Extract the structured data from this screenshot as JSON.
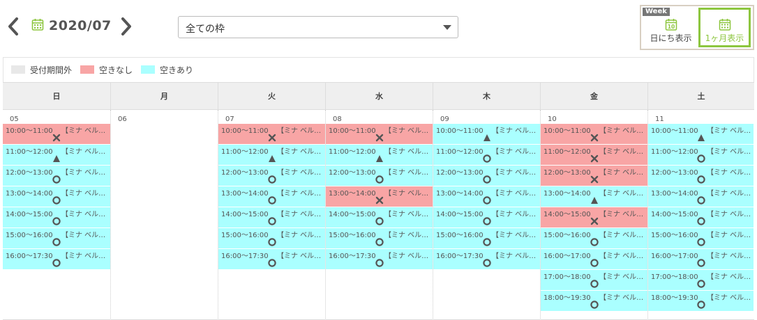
{
  "header": {
    "month": "2020/07",
    "prev_icon": "chevron-left-icon",
    "next_icon": "chevron-right-icon",
    "calendar_icon": "calendar-icon"
  },
  "filter": {
    "selected": "全ての枠"
  },
  "view_switch": {
    "week_tag": "Week",
    "day_label": "日にち表示",
    "day_icon_text": "10",
    "month_label": "1ヶ月表示",
    "active": "month"
  },
  "legend": [
    {
      "label": "受付期間外",
      "color": "#e8e8e8"
    },
    {
      "label": "空きなし",
      "color": "#f8a5a5"
    },
    {
      "label": "空きあり",
      "color": "#aaffff"
    }
  ],
  "colors": {
    "full": "#f8a5a5",
    "open": "#aaffff",
    "accent": "#8dc63f"
  },
  "weekdays": [
    "日",
    "月",
    "火",
    "水",
    "木",
    "金",
    "土"
  ],
  "days": [
    {
      "num": "05",
      "slots": [
        {
          "time": "10:00～11:00",
          "title": "【ミナ ベル…",
          "status": "full"
        },
        {
          "time": "11:00～12:00",
          "title": "【ミナ ベル…",
          "status": "few"
        },
        {
          "time": "12:00～13:00",
          "title": "【ミナ ベル…",
          "status": "open"
        },
        {
          "time": "13:00～14:00",
          "title": "【ミナ ベル…",
          "status": "open"
        },
        {
          "time": "14:00～15:00",
          "title": "【ミナ ベル…",
          "status": "open"
        },
        {
          "time": "15:00～16:00",
          "title": "【ミナ ベル…",
          "status": "open"
        },
        {
          "time": "16:00～17:30",
          "title": "【ミナ ベル…",
          "status": "open"
        }
      ]
    },
    {
      "num": "06",
      "slots": []
    },
    {
      "num": "07",
      "slots": [
        {
          "time": "10:00～11:00",
          "title": "【ミナ ベル…",
          "status": "full"
        },
        {
          "time": "11:00～12:00",
          "title": "【ミナ ベル…",
          "status": "few"
        },
        {
          "time": "12:00～13:00",
          "title": "【ミナ ベル…",
          "status": "open"
        },
        {
          "time": "13:00～14:00",
          "title": "【ミナ ベル…",
          "status": "open"
        },
        {
          "time": "14:00～15:00",
          "title": "【ミナ ベル…",
          "status": "open"
        },
        {
          "time": "15:00～16:00",
          "title": "【ミナ ベル…",
          "status": "open"
        },
        {
          "time": "16:00～17:30",
          "title": "【ミナ ベル…",
          "status": "open"
        }
      ]
    },
    {
      "num": "08",
      "slots": [
        {
          "time": "10:00～11:00",
          "title": "【ミナ ベル…",
          "status": "full"
        },
        {
          "time": "11:00～12:00",
          "title": "【ミナ ベル…",
          "status": "few"
        },
        {
          "time": "12:00～13:00",
          "title": "【ミナ ベル…",
          "status": "open"
        },
        {
          "time": "13:00～14:00",
          "title": "【ミナ ベル…",
          "status": "full"
        },
        {
          "time": "14:00～15:00",
          "title": "【ミナ ベル…",
          "status": "open"
        },
        {
          "time": "15:00～16:00",
          "title": "【ミナ ベル…",
          "status": "open"
        },
        {
          "time": "16:00～17:30",
          "title": "【ミナ ベル…",
          "status": "open"
        }
      ]
    },
    {
      "num": "09",
      "slots": [
        {
          "time": "10:00～11:00",
          "title": "【ミナ ベル…",
          "status": "few"
        },
        {
          "time": "11:00～12:00",
          "title": "【ミナ ベル…",
          "status": "open"
        },
        {
          "time": "12:00～13:00",
          "title": "【ミナ ベル…",
          "status": "open"
        },
        {
          "time": "13:00～14:00",
          "title": "【ミナ ベル…",
          "status": "open"
        },
        {
          "time": "14:00～15:00",
          "title": "【ミナ ベル…",
          "status": "open"
        },
        {
          "time": "15:00～16:00",
          "title": "【ミナ ベル…",
          "status": "open"
        },
        {
          "time": "16:00～17:30",
          "title": "【ミナ ベル…",
          "status": "open"
        }
      ]
    },
    {
      "num": "10",
      "slots": [
        {
          "time": "10:00～11:00",
          "title": "【ミナ ベル…",
          "status": "full"
        },
        {
          "time": "11:00～12:00",
          "title": "【ミナ ベル…",
          "status": "full"
        },
        {
          "time": "12:00～13:00",
          "title": "【ミナ ベル…",
          "status": "full"
        },
        {
          "time": "13:00～14:00",
          "title": "【ミナ ベル…",
          "status": "few"
        },
        {
          "time": "14:00～15:00",
          "title": "【ミナ ベル…",
          "status": "full"
        },
        {
          "time": "15:00～16:00",
          "title": "【ミナ ベル…",
          "status": "open"
        },
        {
          "time": "16:00～17:00",
          "title": "【ミナ ベル…",
          "status": "open"
        },
        {
          "time": "17:00～18:00",
          "title": "【ミナ ベル…",
          "status": "open"
        },
        {
          "time": "18:00～19:30",
          "title": "【ミナ ベル…",
          "status": "open"
        }
      ]
    },
    {
      "num": "11",
      "slots": [
        {
          "time": "10:00～11:00",
          "title": "【ミナ ベル…",
          "status": "few"
        },
        {
          "time": "11:00～12:00",
          "title": "【ミナ ベル…",
          "status": "open"
        },
        {
          "time": "12:00～13:00",
          "title": "【ミナ ベル…",
          "status": "open"
        },
        {
          "time": "13:00～14:00",
          "title": "【ミナ ベル…",
          "status": "open"
        },
        {
          "time": "14:00～15:00",
          "title": "【ミナ ベル…",
          "status": "open"
        },
        {
          "time": "15:00～16:00",
          "title": "【ミナ ベル…",
          "status": "open"
        },
        {
          "time": "16:00～17:00",
          "title": "【ミナ ベル…",
          "status": "open"
        },
        {
          "time": "17:00～18:00",
          "title": "【ミナ ベル…",
          "status": "open"
        },
        {
          "time": "18:00～19:30",
          "title": "【ミナ ベル…",
          "status": "open"
        }
      ]
    }
  ]
}
